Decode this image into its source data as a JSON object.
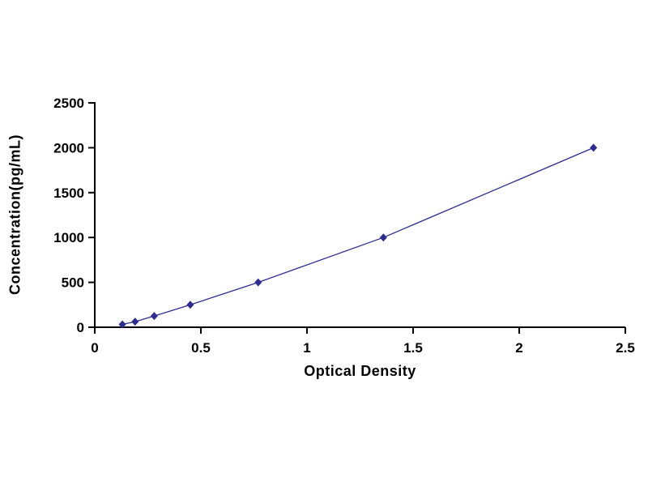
{
  "chart_data": {
    "type": "line",
    "title": "",
    "xlabel": "Optical Density",
    "ylabel": "Concentration(pg/mL)",
    "x": [
      0.13,
      0.19,
      0.28,
      0.45,
      0.77,
      1.36,
      2.35
    ],
    "y": [
      31.25,
      62.5,
      125,
      250,
      500,
      1000,
      2000
    ],
    "xlim": [
      0,
      2.5
    ],
    "ylim": [
      0,
      2500
    ],
    "x_ticks": [
      0,
      0.5,
      1,
      1.5,
      2,
      2.5
    ],
    "y_ticks": [
      0,
      500,
      1000,
      1500,
      2000,
      2500
    ],
    "grid": false,
    "legend": "none",
    "line_color": "#2d2d90",
    "marker": "diamond",
    "marker_color": "#2d2d90",
    "axis_color": "#000000"
  }
}
